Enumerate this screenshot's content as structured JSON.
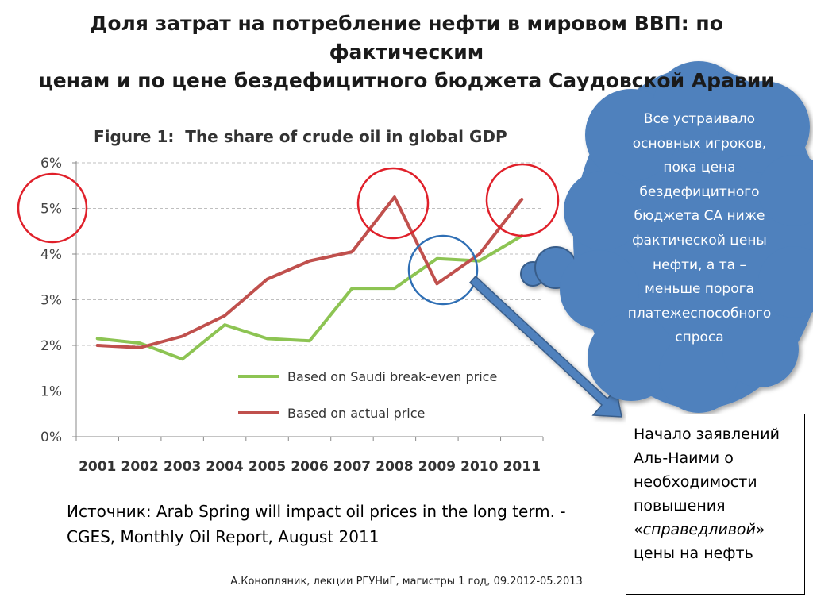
{
  "slide": {
    "title_line1": "Доля затрат на потребление нефти в мировом ВВП: по фактическим",
    "title_line2": "ценам и по цене бездефицитного бюджета Саудовской Аравии",
    "source_line1": "Источник: Arab Spring will impact oil prices in the long term. -",
    "source_line2": "CGES, Monthly Oil Report, August 2011",
    "footer": "А.Конопляник, лекции РГУНиГ, магистры 1 год, 09.2012-05.2013"
  },
  "callout": {
    "lines": [
      "Все устраивало",
      "основных игроков,",
      "пока цена",
      "бездефицитного",
      "бюджета СА ниже",
      "фактической цены",
      "нефти, а та –",
      "меньше порога",
      "платежеспособного",
      "спроса"
    ],
    "color": "#4f81bd"
  },
  "note": {
    "line1": "Начало заявлений",
    "line2": "Аль-Наими о",
    "line3": "необходимости",
    "line4": "повышения",
    "line5_open": "«",
    "line5_italic": "справедливой",
    "line5_close": "»",
    "line6": "цены на нефть"
  },
  "colors": {
    "saudi_line": "#8dc453",
    "actual_line": "#c0504d",
    "highlight_circle_red": "#e0202a",
    "highlight_circle_blue": "#2f6fb5",
    "arrow": "#4f81bd"
  },
  "chart_data": {
    "type": "line",
    "title": "Figure 1:  The share of crude oil in global GDP",
    "x": [
      "2001",
      "2002",
      "2003",
      "2004",
      "2005",
      "2006",
      "2007",
      "2008",
      "2009",
      "2010",
      "2011"
    ],
    "y_ticks": [
      "0%",
      "1%",
      "2%",
      "3%",
      "4%",
      "5%",
      "6%"
    ],
    "ylim": [
      0,
      6
    ],
    "grid": "horizontal-dashed",
    "legend_position": "bottom-center",
    "series": [
      {
        "name": "Based on Saudi break-even price",
        "values": [
          2.15,
          2.05,
          1.7,
          2.45,
          2.15,
          2.1,
          3.25,
          3.25,
          3.9,
          3.85,
          4.4
        ],
        "color": "#8dc453"
      },
      {
        "name": "Based on actual price",
        "values": [
          2.0,
          1.95,
          2.2,
          2.65,
          3.45,
          3.85,
          4.05,
          5.25,
          3.35,
          4.0,
          5.2
        ],
        "color": "#c0504d"
      }
    ]
  }
}
